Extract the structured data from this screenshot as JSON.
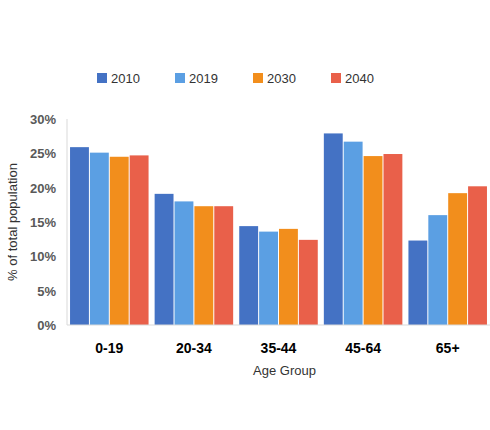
{
  "chart_data": {
    "type": "bar",
    "x_label": "Age Group",
    "y_label": "% of total population",
    "categories": [
      "0-19",
      "20-34",
      "35-44",
      "45-64",
      "65+"
    ],
    "series": [
      {
        "name": "2010",
        "color": "#4472c4",
        "values": [
          25.9,
          19.1,
          14.4,
          27.9,
          12.3
        ]
      },
      {
        "name": "2019",
        "color": "#5b9fe3",
        "values": [
          25.1,
          18.0,
          13.6,
          26.7,
          16.0
        ]
      },
      {
        "name": "2030",
        "color": "#f28e1c",
        "values": [
          24.5,
          17.3,
          14.0,
          24.6,
          19.2
        ]
      },
      {
        "name": "2040",
        "color": "#e9604a",
        "values": [
          24.7,
          17.3,
          12.4,
          24.9,
          20.2
        ]
      }
    ],
    "ylim": [
      0,
      30
    ],
    "yticks": [
      {
        "value": 0,
        "label": "0%"
      },
      {
        "value": 5,
        "label": "5%"
      },
      {
        "value": 10,
        "label": "10%"
      },
      {
        "value": 15,
        "label": "15%"
      },
      {
        "value": 20,
        "label": "20%"
      },
      {
        "value": 25,
        "label": "25%"
      },
      {
        "value": 30,
        "label": "30%"
      }
    ],
    "grid": false,
    "legend": "top"
  }
}
